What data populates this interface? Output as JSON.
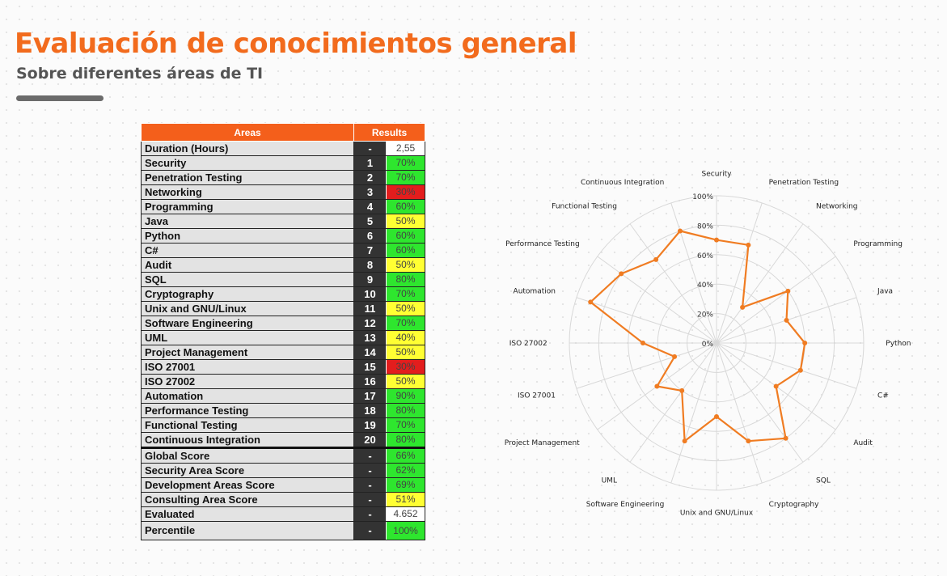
{
  "header": {
    "title": "Evaluación de conocimientos general",
    "subtitle": "Sobre diferentes áreas de TI"
  },
  "table": {
    "columns": [
      "Areas",
      "Results"
    ],
    "rows": [
      {
        "area": "Duration (Hours)",
        "num": "-",
        "value": "2,55",
        "color": "#ffffff"
      },
      {
        "area": "Security",
        "num": "1",
        "value": "70%",
        "color": "#2ee62e"
      },
      {
        "area": "Penetration Testing",
        "num": "2",
        "value": "70%",
        "color": "#2ee62e"
      },
      {
        "area": "Networking",
        "num": "3",
        "value": "30%",
        "color": "#e31d1d"
      },
      {
        "area": "Programming",
        "num": "4",
        "value": "60%",
        "color": "#2ee62e"
      },
      {
        "area": "Java",
        "num": "5",
        "value": "50%",
        "color": "#ffff33"
      },
      {
        "area": "Python",
        "num": "6",
        "value": "60%",
        "color": "#2ee62e"
      },
      {
        "area": "C#",
        "num": "7",
        "value": "60%",
        "color": "#2ee62e"
      },
      {
        "area": "Audit",
        "num": "8",
        "value": "50%",
        "color": "#ffff33"
      },
      {
        "area": "SQL",
        "num": "9",
        "value": "80%",
        "color": "#2ee62e"
      },
      {
        "area": "Cryptography",
        "num": "10",
        "value": "70%",
        "color": "#2ee62e"
      },
      {
        "area": "Unix and GNU/Linux",
        "num": "11",
        "value": "50%",
        "color": "#ffff33"
      },
      {
        "area": "Software Engineering",
        "num": "12",
        "value": "70%",
        "color": "#2ee62e"
      },
      {
        "area": "UML",
        "num": "13",
        "value": "40%",
        "color": "#ffff33"
      },
      {
        "area": "Project Management",
        "num": "14",
        "value": "50%",
        "color": "#ffff33"
      },
      {
        "area": "ISO 27001",
        "num": "15",
        "value": "30%",
        "color": "#e31d1d"
      },
      {
        "area": "ISO 27002",
        "num": "16",
        "value": "50%",
        "color": "#ffff33"
      },
      {
        "area": "Automation",
        "num": "17",
        "value": "90%",
        "color": "#2ee62e"
      },
      {
        "area": "Performance Testing",
        "num": "18",
        "value": "80%",
        "color": "#2ee62e"
      },
      {
        "area": "Functional Testing",
        "num": "19",
        "value": "70%",
        "color": "#2ee62e"
      },
      {
        "area": "Continuous Integration",
        "num": "20",
        "value": "80%",
        "color": "#2ee62e"
      }
    ],
    "summary": [
      {
        "area": "Global Score",
        "num": "-",
        "value": "66%",
        "color": "#2ee62e"
      },
      {
        "area": "Security Area Score",
        "num": "-",
        "value": "62%",
        "color": "#2ee62e"
      },
      {
        "area": "Development Areas Score",
        "num": "-",
        "value": "69%",
        "color": "#2ee62e"
      },
      {
        "area": "Consulting Area Score",
        "num": "-",
        "value": "51%",
        "color": "#ffff33"
      },
      {
        "area": "Evaluated",
        "num": "-",
        "value": "4.652",
        "color": "#ffffff"
      },
      {
        "area": "Percentile",
        "num": "-",
        "value": "100%",
        "color": "#2ee62e"
      }
    ]
  },
  "chart_data": {
    "type": "radar",
    "categories": [
      "Security",
      "Penetration Testing",
      "Networking",
      "Programming",
      "Java",
      "Python",
      "C#",
      "Audit",
      "SQL",
      "Cryptography",
      "Unix and GNU/Linux",
      "Software Engineering",
      "UML",
      "Project Management",
      "ISO 27001",
      "ISO 27002",
      "Automation",
      "Performance Testing",
      "Functional Testing",
      "Continuous Integration"
    ],
    "values": [
      70,
      70,
      30,
      60,
      50,
      60,
      60,
      50,
      80,
      70,
      50,
      70,
      40,
      50,
      30,
      50,
      90,
      80,
      70,
      80
    ],
    "ticks": [
      "0%",
      "20%",
      "40%",
      "60%",
      "80%",
      "100%"
    ],
    "ylim": [
      0,
      100
    ],
    "line_color": "#f07c22",
    "grid": true
  }
}
